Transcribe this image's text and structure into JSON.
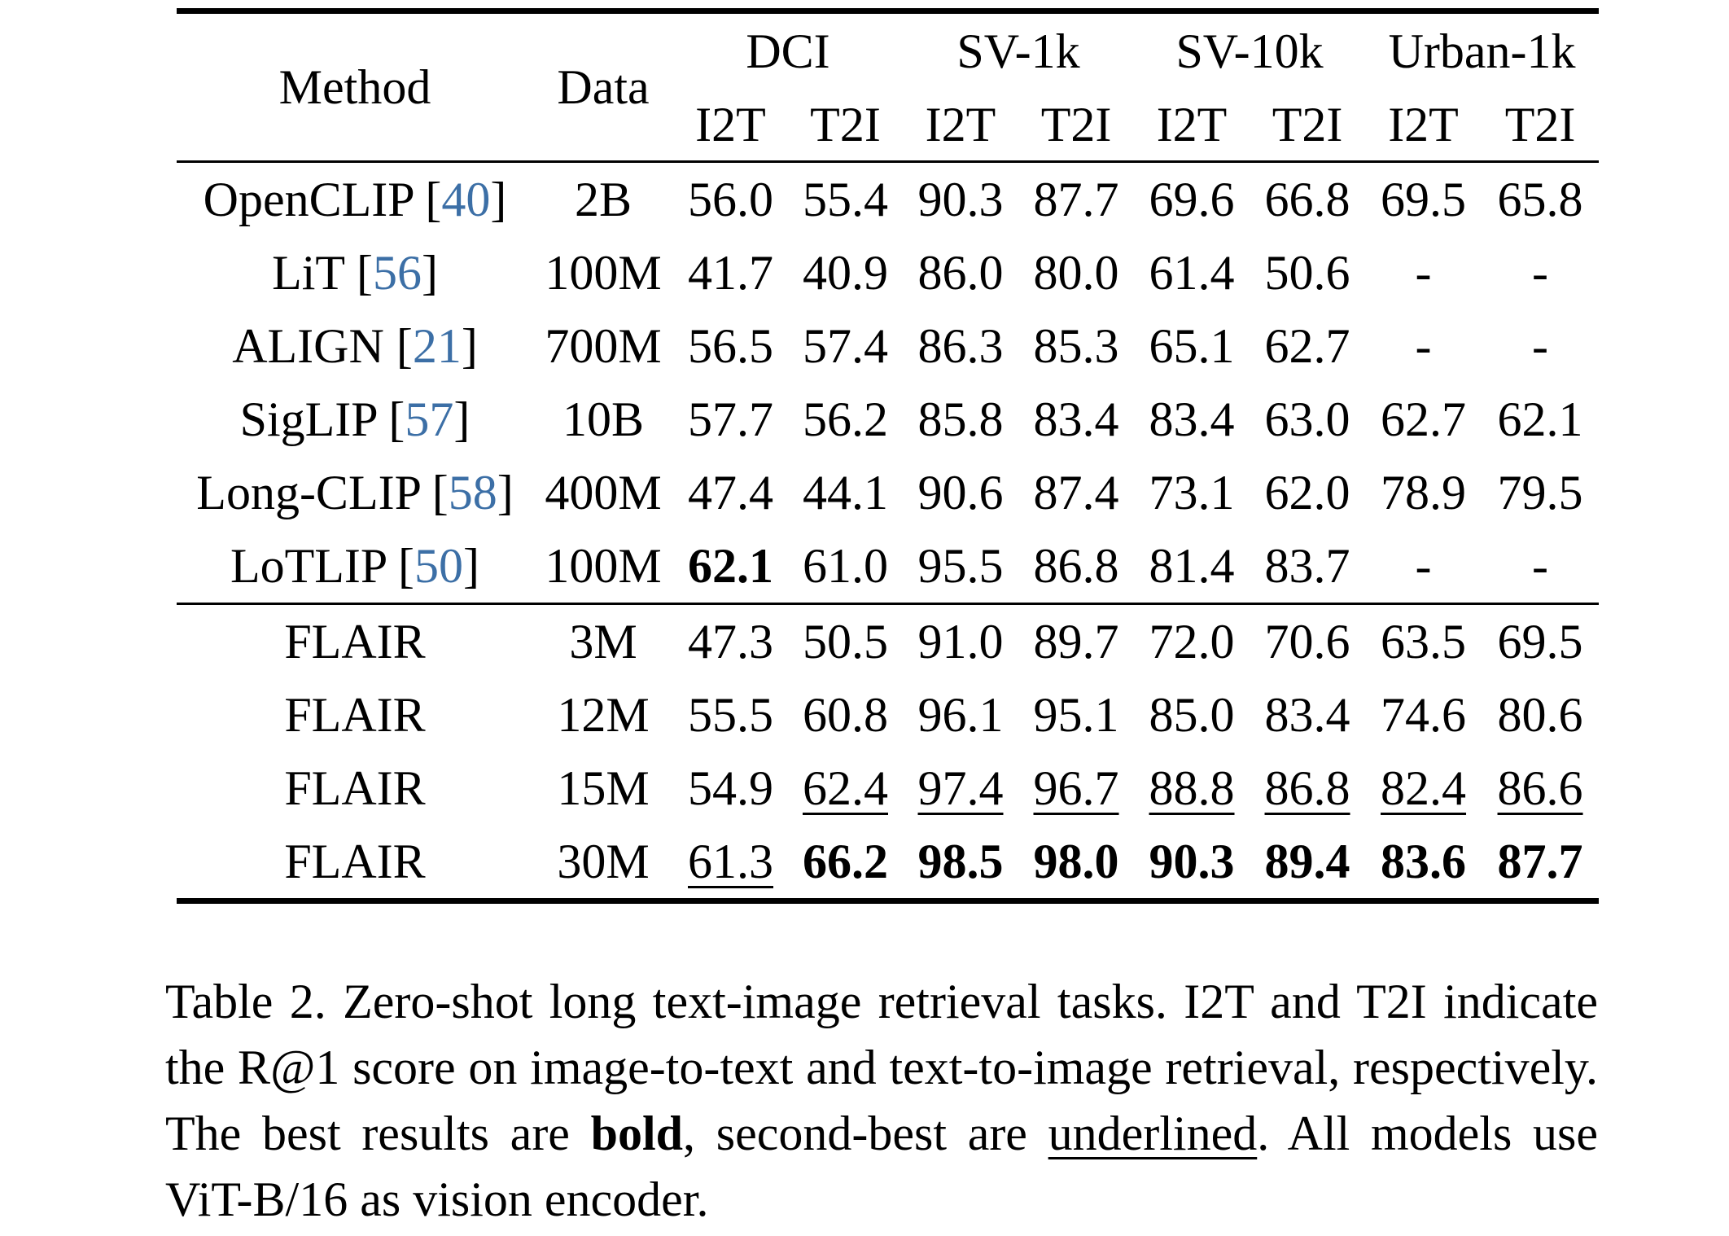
{
  "table": {
    "header": {
      "method": "Method",
      "data": "Data",
      "groups": [
        "DCI",
        "SV-1k",
        "SV-10k",
        "Urban-1k"
      ],
      "subcolumns": [
        "I2T",
        "T2I",
        "I2T",
        "T2I",
        "I2T",
        "T2I",
        "I2T",
        "T2I"
      ]
    },
    "rows": [
      {
        "method": "OpenCLIP [",
        "cite": "40",
        "close": "]",
        "data": "2B",
        "values": [
          "56.0",
          "55.4",
          "90.3",
          "87.7",
          "69.6",
          "66.8",
          "69.5",
          "65.8"
        ],
        "bold": [],
        "underline": []
      },
      {
        "method": "LiT [",
        "cite": "56",
        "close": "]",
        "data": "100M",
        "values": [
          "41.7",
          "40.9",
          "86.0",
          "80.0",
          "61.4",
          "50.6",
          "-",
          "-"
        ],
        "bold": [],
        "underline": []
      },
      {
        "method": "ALIGN [",
        "cite": "21",
        "close": "]",
        "data": "700M",
        "values": [
          "56.5",
          "57.4",
          "86.3",
          "85.3",
          "65.1",
          "62.7",
          "-",
          "-"
        ],
        "bold": [],
        "underline": []
      },
      {
        "method": "SigLIP [",
        "cite": "57",
        "close": "]",
        "data": "10B",
        "values": [
          "57.7",
          "56.2",
          "85.8",
          "83.4",
          "83.4",
          "63.0",
          "62.7",
          "62.1"
        ],
        "bold": [],
        "underline": []
      },
      {
        "method": "Long-CLIP [",
        "cite": "58",
        "close": "]",
        "data": "400M",
        "values": [
          "47.4",
          "44.1",
          "90.6",
          "87.4",
          "73.1",
          "62.0",
          "78.9",
          "79.5"
        ],
        "bold": [],
        "underline": []
      },
      {
        "method": "LoTLIP [",
        "cite": "50",
        "close": "]",
        "data": "100M",
        "values": [
          "62.1",
          "61.0",
          "95.5",
          "86.8",
          "81.4",
          "83.7",
          "-",
          "-"
        ],
        "bold": [
          0
        ],
        "underline": []
      },
      {
        "method": "FLAIR",
        "cite": "",
        "close": "",
        "data": "3M",
        "values": [
          "47.3",
          "50.5",
          "91.0",
          "89.7",
          "72.0",
          "70.6",
          "63.5",
          "69.5"
        ],
        "bold": [],
        "underline": []
      },
      {
        "method": "FLAIR",
        "cite": "",
        "close": "",
        "data": "12M",
        "values": [
          "55.5",
          "60.8",
          "96.1",
          "95.1",
          "85.0",
          "83.4",
          "74.6",
          "80.6"
        ],
        "bold": [],
        "underline": []
      },
      {
        "method": "FLAIR",
        "cite": "",
        "close": "",
        "data": "15M",
        "values": [
          "54.9",
          "62.4",
          "97.4",
          "96.7",
          "88.8",
          "86.8",
          "82.4",
          "86.6"
        ],
        "bold": [],
        "underline": [
          1,
          2,
          3,
          4,
          5,
          6,
          7
        ]
      },
      {
        "method": "FLAIR",
        "cite": "",
        "close": "",
        "data": "30M",
        "values": [
          "61.3",
          "66.2",
          "98.5",
          "98.0",
          "90.3",
          "89.4",
          "83.6",
          "87.7"
        ],
        "bold": [
          1,
          2,
          3,
          4,
          5,
          6,
          7
        ],
        "underline": [
          0
        ]
      }
    ]
  },
  "caption": {
    "part1": "Table 2. Zero-shot long text-image retrieval tasks. I2T and T2I indicate the R@1 score on image-to-text and text-to-image retrieval, respectively. The best results are ",
    "bold_word": "bold",
    "part2": ", second-best are ",
    "underline_word": "underlined",
    "part3": ". All models use ViT-B/16 as vision encoder."
  }
}
